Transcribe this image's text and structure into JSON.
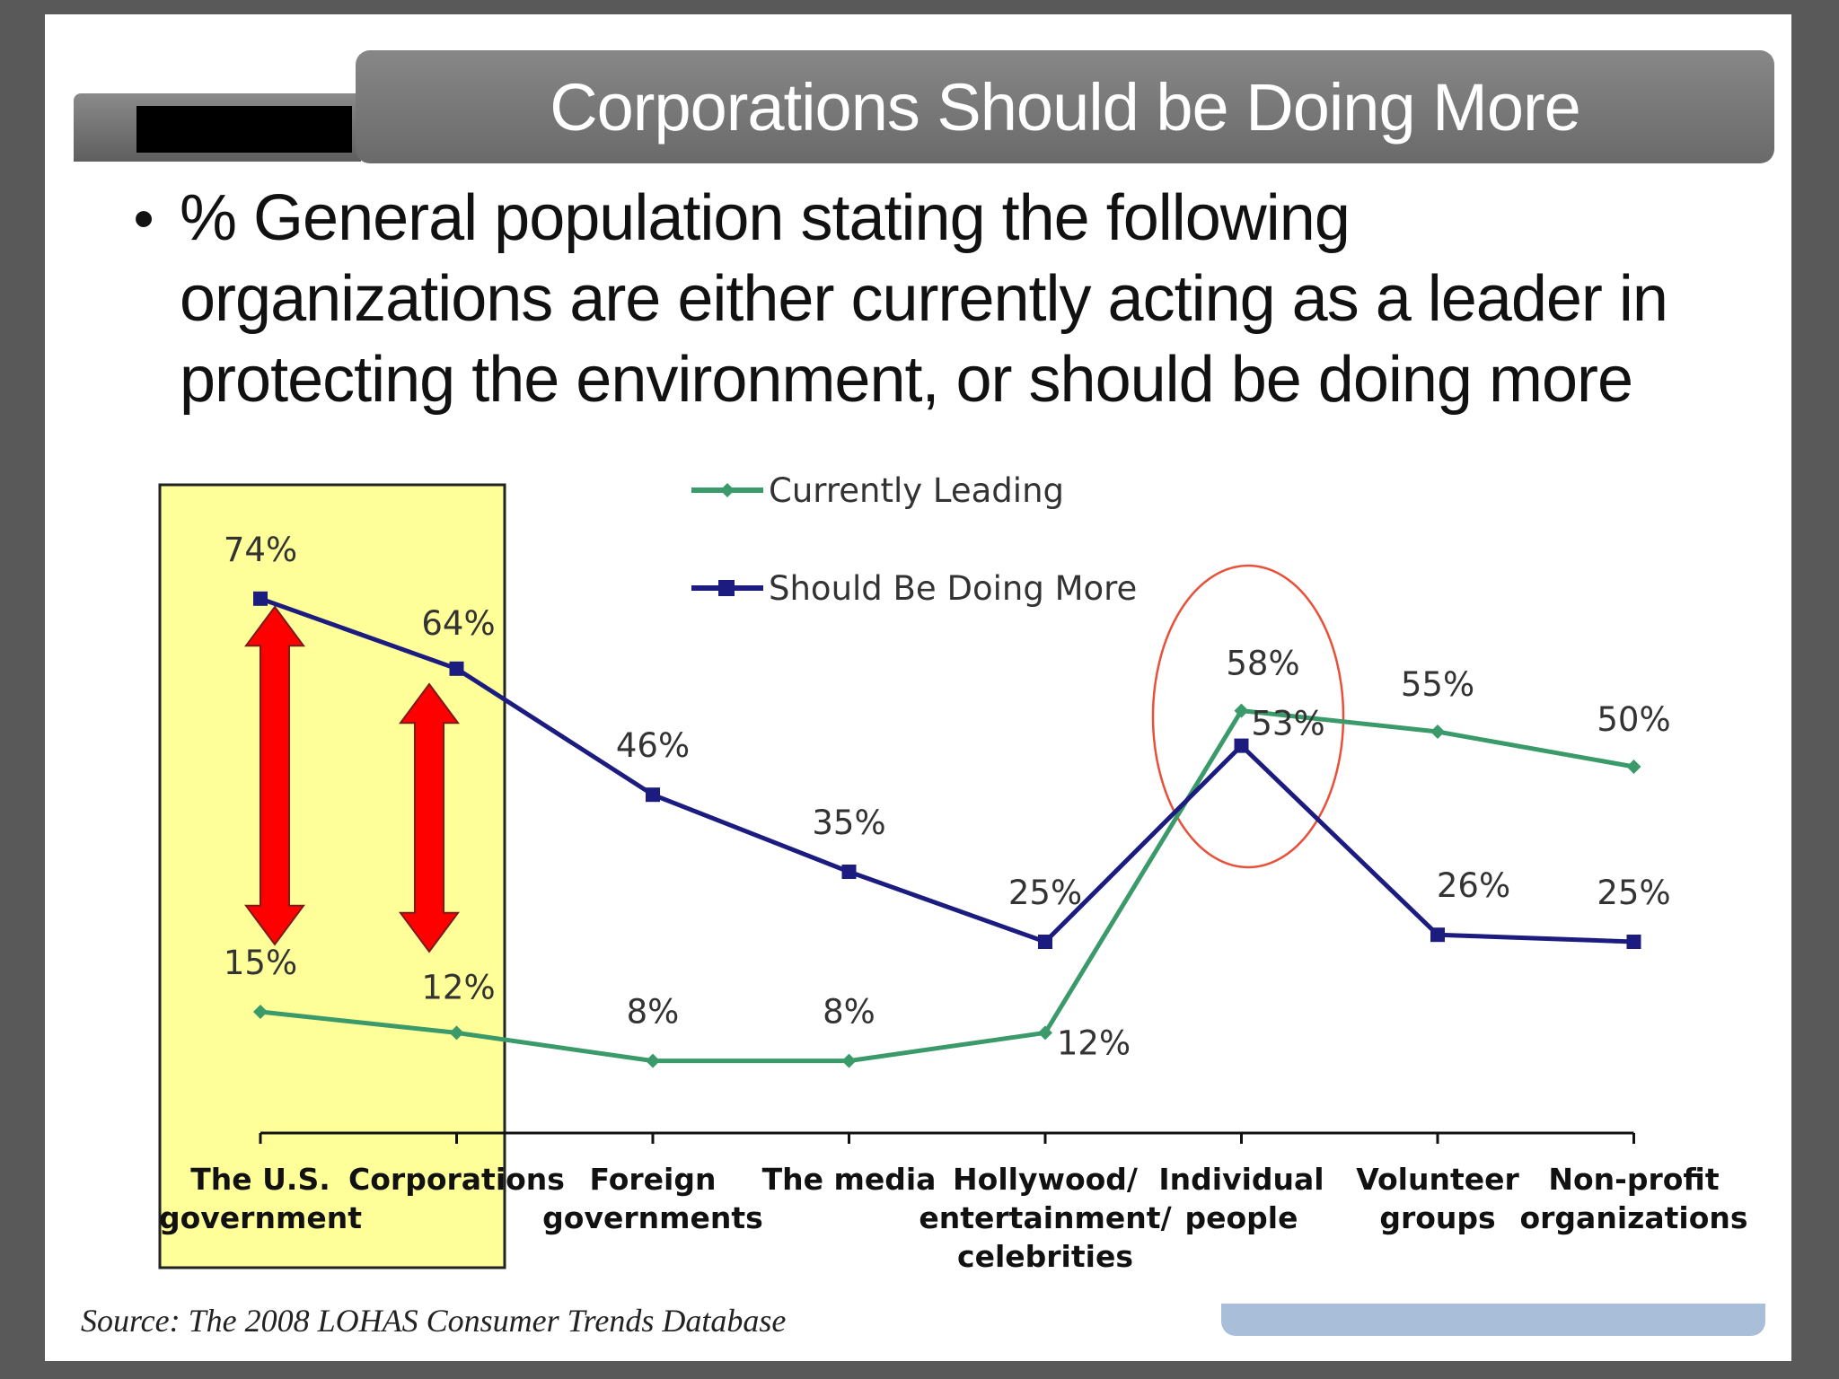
{
  "slide": {
    "title": "Corporations Should be Doing More",
    "bullet": "% General population stating the following organizations are either currently acting as a leader in protecting the environment, or should be doing more",
    "source": "Source: The 2008 LOHAS Consumer Trends Database"
  },
  "colors": {
    "currently_leading": "#3a9a6a",
    "should_do_more": "#1c1c80",
    "highlight_fill": "#ffff99",
    "arrow": "#ff0000",
    "circle": "#e8503a"
  },
  "chart_data": {
    "type": "line",
    "categories": [
      [
        "The U.S.",
        "government"
      ],
      [
        "Corporations"
      ],
      [
        "Foreign",
        "governments"
      ],
      [
        "The media"
      ],
      [
        "Hollywood/",
        "entertainment/",
        "celebrities"
      ],
      [
        "Individual",
        "people"
      ],
      [
        "Volunteer",
        "groups"
      ],
      [
        "Non-profit",
        "organizations"
      ]
    ],
    "series": [
      {
        "name": "Currently Leading",
        "values": [
          15,
          12,
          8,
          8,
          12,
          58,
          55,
          50
        ],
        "labels": [
          "15%",
          "12%",
          "8%",
          "8%",
          "12%",
          "58%",
          "55%",
          "50%"
        ],
        "marker": "diamond"
      },
      {
        "name": "Should Be Doing More",
        "values": [
          74,
          64,
          46,
          35,
          25,
          53,
          26,
          25
        ],
        "labels": [
          "74%",
          "64%",
          "46%",
          "35%",
          "25%",
          "53%",
          "26%",
          "25%"
        ],
        "marker": "square"
      }
    ],
    "legend_position": "top-center",
    "grid": false,
    "annotations": {
      "highlighted_categories": [
        "The U.S. government",
        "Corporations"
      ],
      "gap_arrows_categories": [
        "The U.S. government",
        "Corporations"
      ],
      "circled_category": "Individual people"
    }
  }
}
